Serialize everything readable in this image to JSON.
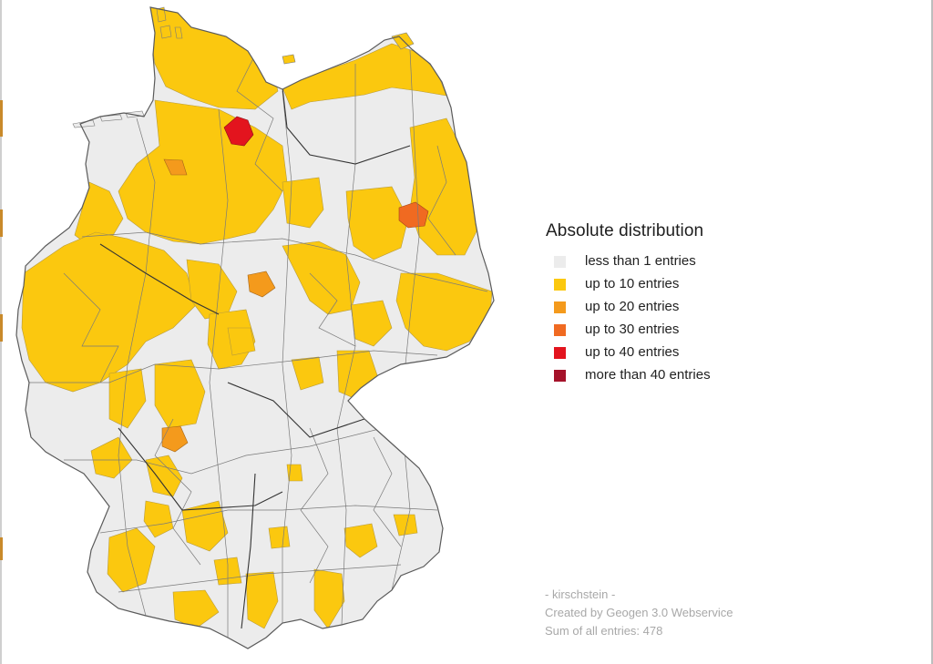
{
  "legend": {
    "title": "Absolute distribution",
    "items": [
      {
        "label": "less than 1 entries",
        "color": "#ececec"
      },
      {
        "label": "up to 10 entries",
        "color": "#fbc80f"
      },
      {
        "label": "up to 20 entries",
        "color": "#f49a1c"
      },
      {
        "label": "up to 30 entries",
        "color": "#f06a21"
      },
      {
        "label": "up to 40 entries",
        "color": "#e3141e"
      },
      {
        "label": "more than 40 entries",
        "color": "#a5122a"
      }
    ]
  },
  "credits": {
    "author": "- kirschstein -",
    "generator": "Created by Geogen 3.0 Webservice",
    "sum": "Sum of all entries: 478"
  },
  "colors": {
    "none": "#ececec",
    "low": "#fbc80f",
    "mid": "#f49a1c",
    "high": "#f06a21",
    "top": "#e3141e",
    "border": "#6f6f6f"
  }
}
